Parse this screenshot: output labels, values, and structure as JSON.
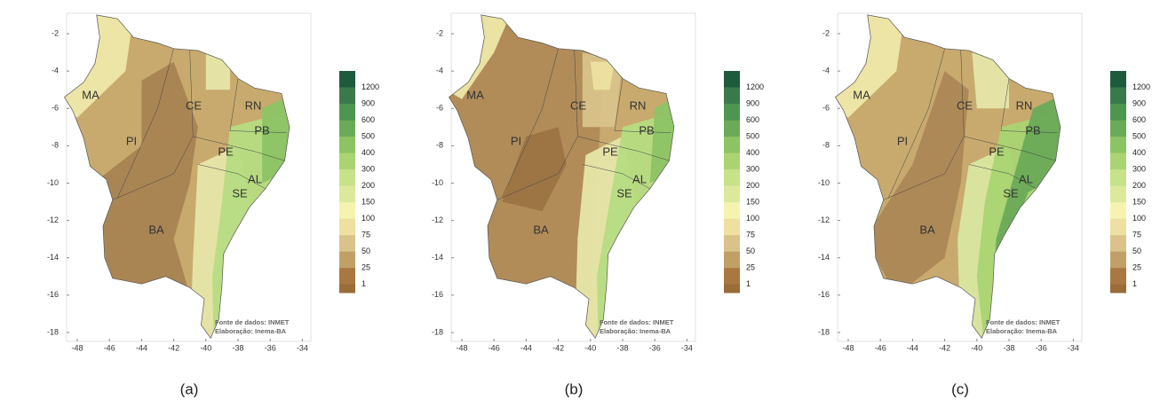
{
  "axes": {
    "xticks": [
      -48,
      -46,
      -44,
      -42,
      -40,
      -38,
      -36,
      -34
    ],
    "yticks": [
      -2,
      -4,
      -6,
      -8,
      -10,
      -12,
      -14,
      -16,
      -18
    ]
  },
  "legend": {
    "labels": [
      1200,
      900,
      600,
      500,
      400,
      300,
      200,
      150,
      100,
      75,
      50,
      25,
      1
    ]
  },
  "states": [
    "MA",
    "PI",
    "CE",
    "RN",
    "PB",
    "PE",
    "AL",
    "SE",
    "BA"
  ],
  "source": {
    "line1": "Fonte de dados: INMET",
    "line2": "Elaboração: Inema-BA"
  },
  "panels": [
    {
      "caption": "(a)"
    },
    {
      "caption": "(b)"
    },
    {
      "caption": "(c)"
    }
  ]
}
